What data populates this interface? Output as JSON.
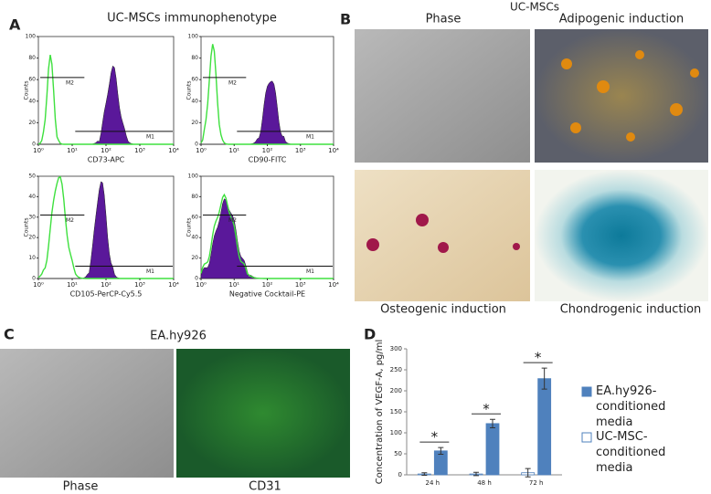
{
  "panels": {
    "a": {
      "letter": "A",
      "title": "UC-MSCs immunophenotype"
    },
    "b": {
      "letter": "B",
      "title": "UC-MSCs",
      "images": [
        "Phase",
        "Adipogenic induction",
        "Osteogenic induction",
        "Chondrogenic induction"
      ]
    },
    "c": {
      "letter": "C",
      "title": "EA.hy926",
      "images": [
        "Phase",
        "CD31"
      ]
    },
    "d": {
      "letter": "D"
    }
  },
  "chart_data": [
    {
      "type": "flow",
      "xlabel": "CD73-APC",
      "ylabel": "Counts",
      "log_x": true,
      "xlim": [
        1,
        10000
      ],
      "xticks": [
        {
          "value": 1,
          "label": "10⁰"
        },
        {
          "value": 10,
          "label": "10¹"
        },
        {
          "value": 100,
          "label": "10²"
        },
        {
          "value": 1000,
          "label": "10³"
        },
        {
          "value": 10000,
          "label": "10⁴"
        }
      ],
      "ylim": [
        0,
        100
      ],
      "yticks": [
        0,
        20,
        40,
        60,
        80,
        100
      ],
      "annotations": [
        "M2",
        "M1"
      ],
      "fill": "#5a189a",
      "line": "#3ee03e"
    },
    {
      "type": "flow",
      "xlabel": "CD90-FITC",
      "ylabel": "Counts",
      "log_x": true,
      "xlim": [
        1,
        10000
      ],
      "xticks": [
        {
          "value": 1,
          "label": "10⁰"
        },
        {
          "value": 10,
          "label": "10¹"
        },
        {
          "value": 100,
          "label": "10²"
        },
        {
          "value": 1000,
          "label": "10³"
        },
        {
          "value": 10000,
          "label": "10⁴"
        }
      ],
      "ylim": [
        0,
        100
      ],
      "yticks": [
        0,
        20,
        40,
        60,
        80,
        100
      ],
      "annotations": [
        "M2",
        "M1"
      ],
      "fill": "#5a189a",
      "line": "#3ee03e"
    },
    {
      "type": "flow",
      "xlabel": "CD105-PerCP-Cy5.5",
      "ylabel": "Counts",
      "log_x": true,
      "xlim": [
        1,
        10000
      ],
      "xticks": [
        {
          "value": 1,
          "label": "10⁰"
        },
        {
          "value": 10,
          "label": "10¹"
        },
        {
          "value": 100,
          "label": "10²"
        },
        {
          "value": 1000,
          "label": "10³"
        },
        {
          "value": 10000,
          "label": "10⁴"
        }
      ],
      "ylim": [
        0,
        50
      ],
      "yticks": [
        0,
        10,
        20,
        30,
        40,
        50
      ],
      "annotations": [
        "M2",
        "M1"
      ],
      "fill": "#5a189a",
      "line": "#3ee03e"
    },
    {
      "type": "flow",
      "xlabel": "Negative Cocktail-PE",
      "ylabel": "Counts",
      "log_x": true,
      "xlim": [
        1,
        10000
      ],
      "xticks": [
        {
          "value": 1,
          "label": "10⁰"
        },
        {
          "value": 10,
          "label": "10¹"
        },
        {
          "value": 100,
          "label": "10²"
        },
        {
          "value": 1000,
          "label": "10³"
        },
        {
          "value": 10000,
          "label": "10⁴"
        }
      ],
      "ylim": [
        0,
        100
      ],
      "yticks": [
        0,
        20,
        40,
        60,
        80,
        100
      ],
      "annotations": [
        "M2",
        "M1"
      ],
      "fill": "#5a189a",
      "line": "#3ee03e"
    },
    {
      "type": "bar",
      "ylabel": "Concentration of VEGF-A, pg/ml",
      "categories": [
        "24 h",
        "48 h",
        "72 h"
      ],
      "ylim": [
        0,
        300
      ],
      "yticks": [
        0,
        50,
        100,
        150,
        200,
        250,
        300
      ],
      "series": [
        {
          "name": "EA.hy926-conditioned media",
          "color": "#4f81bd",
          "values": [
            57,
            122,
            229
          ],
          "errors": [
            8,
            10,
            25
          ]
        },
        {
          "name": "UC-MSC-conditioned media",
          "color": "#ffffff",
          "values": [
            2,
            2,
            5
          ],
          "errors": [
            3,
            4,
            10
          ]
        }
      ],
      "annotations": [
        "*",
        "*",
        "*"
      ]
    }
  ]
}
